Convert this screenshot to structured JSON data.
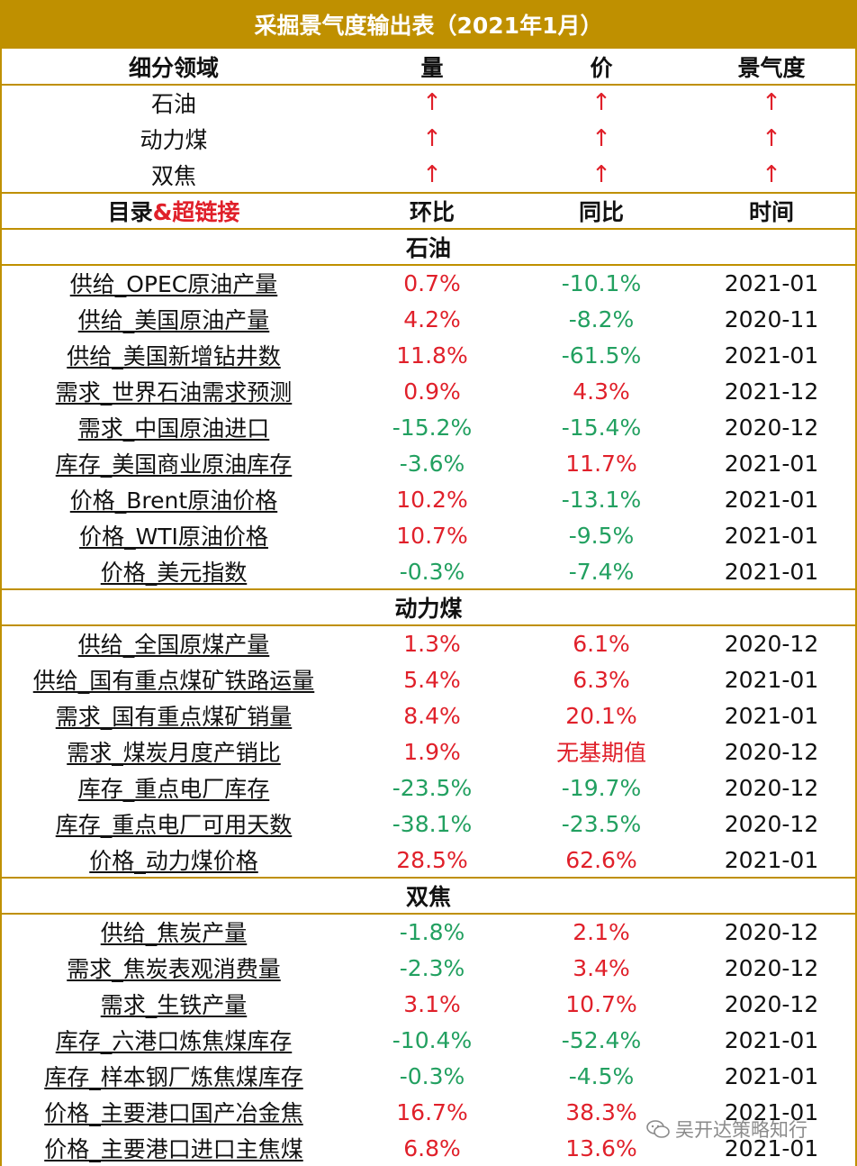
{
  "title": "采掘景气度输出表（2021年1月）",
  "header1": [
    "细分领域",
    "量",
    "价",
    "景气度"
  ],
  "summary": [
    {
      "name": "石油",
      "vol": "↑",
      "price": "↑",
      "climate": "↑"
    },
    {
      "name": "动力煤",
      "vol": "↑",
      "price": "↑",
      "climate": "↑"
    },
    {
      "name": "双焦",
      "vol": "↑",
      "price": "↑",
      "climate": "↑"
    }
  ],
  "header2": {
    "col0_a": "目录",
    "col0_b": "&超链接",
    "col1": "环比",
    "col2": "同比",
    "col3": "时间"
  },
  "sections": [
    {
      "name": "石油",
      "rows": [
        {
          "item": "供给_OPEC原油产量",
          "mom": "0.7%",
          "yoy": "-10.1%",
          "date": "2021-01",
          "mom_color": "red",
          "yoy_color": "green"
        },
        {
          "item": "供给_美国原油产量",
          "mom": "4.2%",
          "yoy": "-8.2%",
          "date": "2020-11",
          "mom_color": "red",
          "yoy_color": "green"
        },
        {
          "item": "供给_美国新增钻井数",
          "mom": "11.8%",
          "yoy": "-61.5%",
          "date": "2021-01",
          "mom_color": "red",
          "yoy_color": "green"
        },
        {
          "item": "需求_世界石油需求预测",
          "mom": "0.9%",
          "yoy": "4.3%",
          "date": "2021-12",
          "mom_color": "red",
          "yoy_color": "red"
        },
        {
          "item": "需求_中国原油进口",
          "mom": "-15.2%",
          "yoy": "-15.4%",
          "date": "2020-12",
          "mom_color": "green",
          "yoy_color": "green"
        },
        {
          "item": "库存_美国商业原油库存",
          "mom": "-3.6%",
          "yoy": "11.7%",
          "date": "2021-01",
          "mom_color": "green",
          "yoy_color": "red"
        },
        {
          "item": "价格_Brent原油价格",
          "mom": "10.2%",
          "yoy": "-13.1%",
          "date": "2021-01",
          "mom_color": "red",
          "yoy_color": "green"
        },
        {
          "item": "价格_WTI原油价格",
          "mom": "10.7%",
          "yoy": "-9.5%",
          "date": "2021-01",
          "mom_color": "red",
          "yoy_color": "green"
        },
        {
          "item": "价格_美元指数",
          "mom": "-0.3%",
          "yoy": "-7.4%",
          "date": "2021-01",
          "mom_color": "green",
          "yoy_color": "green"
        }
      ]
    },
    {
      "name": "动力煤",
      "rows": [
        {
          "item": "供给_全国原煤产量",
          "mom": "1.3%",
          "yoy": "6.1%",
          "date": "2020-12",
          "mom_color": "red",
          "yoy_color": "red"
        },
        {
          "item": "供给_国有重点煤矿铁路运量",
          "mom": "5.4%",
          "yoy": "6.3%",
          "date": "2021-01",
          "mom_color": "red",
          "yoy_color": "red"
        },
        {
          "item": "需求_国有重点煤矿销量",
          "mom": "8.4%",
          "yoy": "20.1%",
          "date": "2021-01",
          "mom_color": "red",
          "yoy_color": "red"
        },
        {
          "item": "需求_煤炭月度产销比",
          "mom": "1.9%",
          "yoy": "无基期值",
          "date": "2020-12",
          "mom_color": "red",
          "yoy_color": "red"
        },
        {
          "item": "库存_重点电厂库存",
          "mom": "-23.5%",
          "yoy": "-19.7%",
          "date": "2020-12",
          "mom_color": "green",
          "yoy_color": "green"
        },
        {
          "item": "库存_重点电厂可用天数",
          "mom": "-38.1%",
          "yoy": "-23.5%",
          "date": "2020-12",
          "mom_color": "green",
          "yoy_color": "green"
        },
        {
          "item": "价格_动力煤价格",
          "mom": "28.5%",
          "yoy": "62.6%",
          "date": "2021-01",
          "mom_color": "red",
          "yoy_color": "red"
        }
      ]
    },
    {
      "name": "双焦",
      "rows": [
        {
          "item": "供给_焦炭产量",
          "mom": "-1.8%",
          "yoy": "2.1%",
          "date": "2020-12",
          "mom_color": "green",
          "yoy_color": "red"
        },
        {
          "item": "需求_焦炭表观消费量",
          "mom": "-2.3%",
          "yoy": "3.4%",
          "date": "2020-12",
          "mom_color": "green",
          "yoy_color": "red"
        },
        {
          "item": "需求_生铁产量",
          "mom": "3.1%",
          "yoy": "10.7%",
          "date": "2020-12",
          "mom_color": "red",
          "yoy_color": "red"
        },
        {
          "item": "库存_六港口炼焦煤库存",
          "mom": "-10.4%",
          "yoy": "-52.4%",
          "date": "2021-01",
          "mom_color": "green",
          "yoy_color": "green"
        },
        {
          "item": "库存_样本钢厂炼焦煤库存",
          "mom": "-0.3%",
          "yoy": "-4.5%",
          "date": "2021-01",
          "mom_color": "green",
          "yoy_color": "green"
        },
        {
          "item": "价格_主要港口国产冶金焦",
          "mom": "16.7%",
          "yoy": "38.3%",
          "date": "2021-01",
          "mom_color": "red",
          "yoy_color": "red"
        },
        {
          "item": "价格_主要港口进口主焦煤",
          "mom": "6.8%",
          "yoy": "13.6%",
          "date": "2021-01",
          "mom_color": "red",
          "yoy_color": "red"
        }
      ]
    }
  ],
  "watermark": "吴开达策略知行",
  "colors": {
    "gold": "#bf9000",
    "red": "#e0202a",
    "green": "#22a060"
  }
}
